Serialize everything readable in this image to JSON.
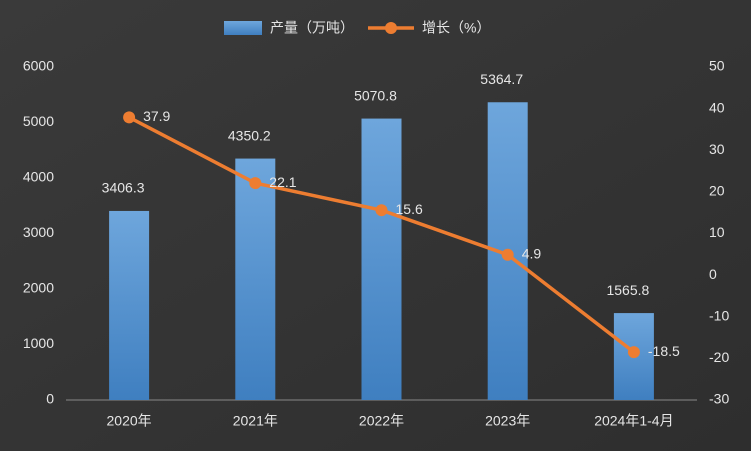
{
  "chart_data": {
    "type": "combo",
    "categories": [
      "2020年",
      "2021年",
      "2022年",
      "2023年",
      "2024年1-4月"
    ],
    "series": [
      {
        "name": "产量（万吨）",
        "type": "bar",
        "color": "#5b9bd5",
        "values": [
          3406.3,
          4350.2,
          5070.8,
          5364.7,
          1565.8
        ]
      },
      {
        "name": "增长（%）",
        "type": "line",
        "color": "#ed7d31",
        "axis": "y2",
        "values": [
          37.9,
          22.1,
          15.6,
          4.9,
          -18.5
        ]
      }
    ],
    "ylim": [
      0,
      6000
    ],
    "yticks": [
      0,
      1000,
      2000,
      3000,
      4000,
      5000,
      6000
    ],
    "y2lim": [
      -30,
      50
    ],
    "y2ticks": [
      -30,
      -20,
      -10,
      0,
      10,
      20,
      30,
      40,
      50
    ],
    "grid": false,
    "legend": "top"
  }
}
